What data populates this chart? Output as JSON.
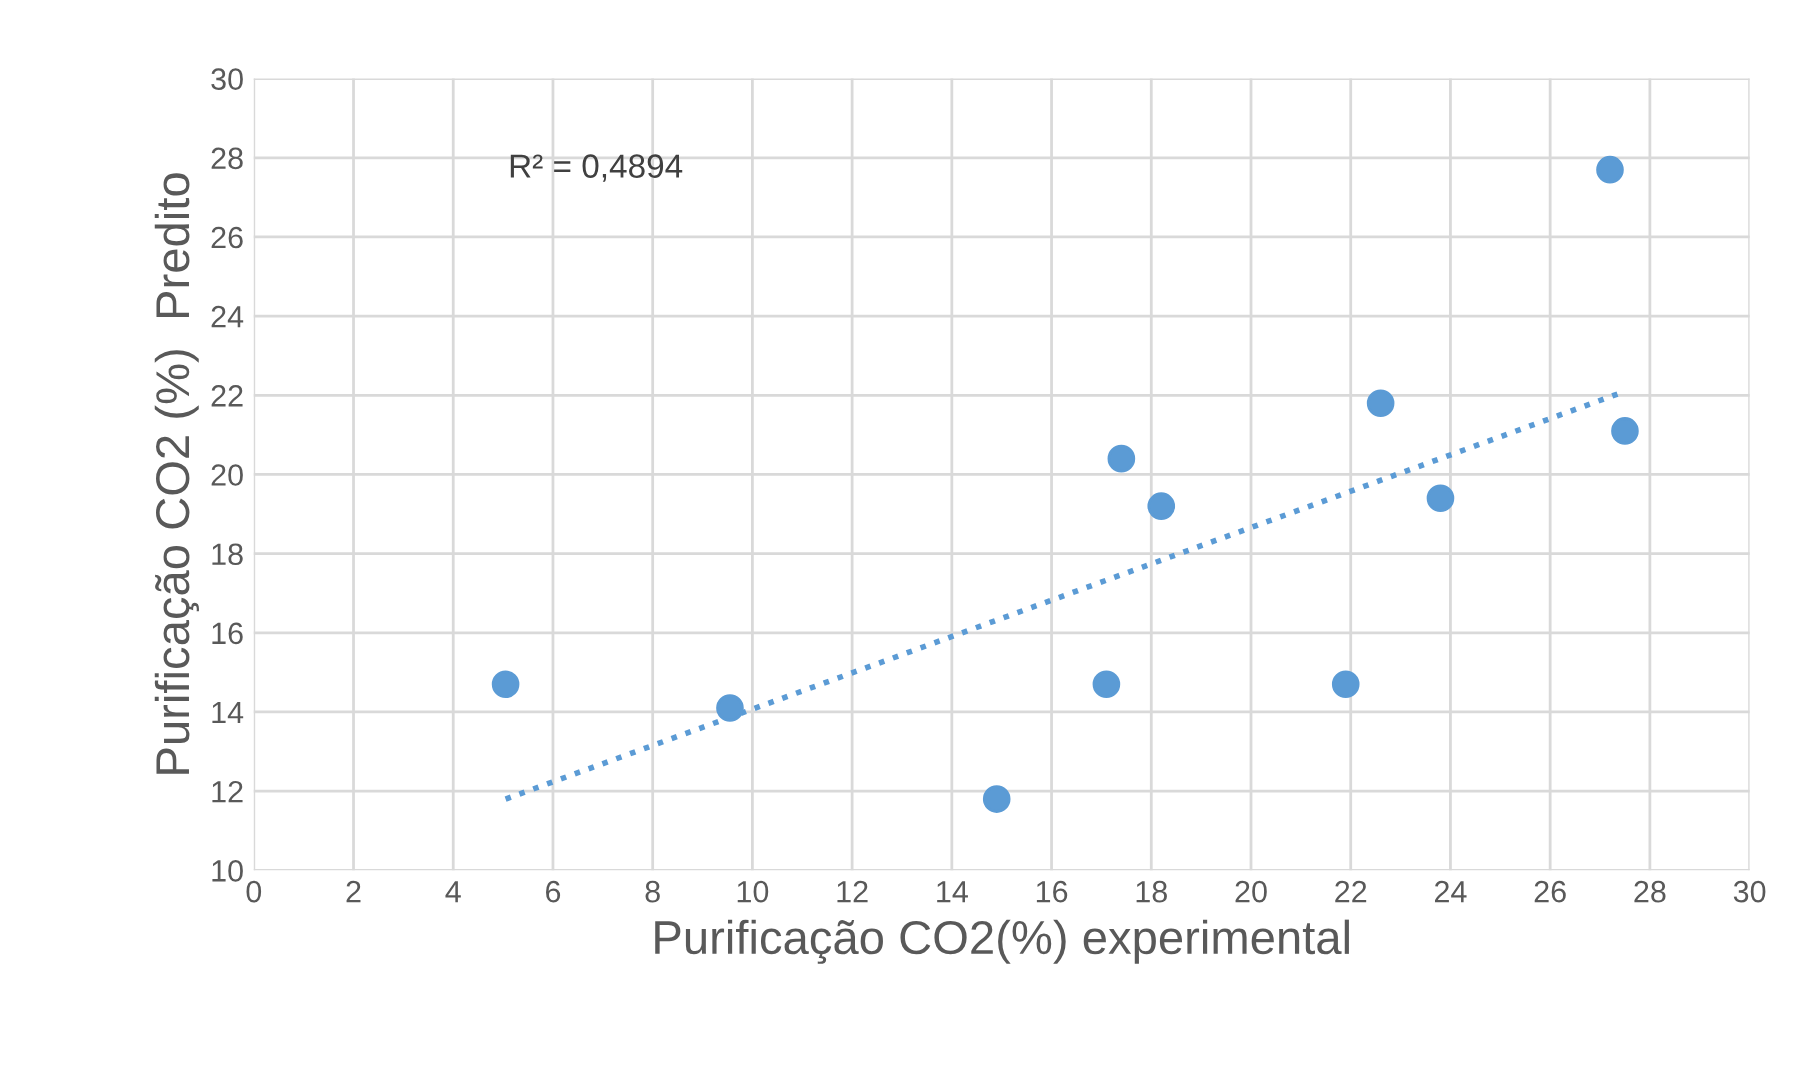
{
  "chart_data": {
    "type": "scatter",
    "xlabel": "Purificação CO2(%) experimental",
    "ylabel": "Purificação CO2 (%)  Predito",
    "xlim": [
      0,
      30
    ],
    "xticks": [
      0,
      2,
      4,
      6,
      8,
      10,
      12,
      14,
      16,
      18,
      20,
      22,
      24,
      26,
      28,
      30
    ],
    "ylim": [
      10,
      30
    ],
    "yticks": [
      10,
      12,
      14,
      16,
      18,
      20,
      22,
      24,
      26,
      28,
      30
    ],
    "grid": true,
    "legend": false,
    "marker": "circle",
    "annotations": [
      "R² = 0,4894"
    ],
    "series": [
      {
        "color": "#5b9bd5",
        "x": [
          5.05,
          9.55,
          14.9,
          17.1,
          17.4,
          18.2,
          21.9,
          22.6,
          23.8,
          27.2,
          27.5
        ],
        "values": [
          14.7,
          14.1,
          11.8,
          14.7,
          20.4,
          19.2,
          14.7,
          21.8,
          19.4,
          27.7,
          21.1
        ]
      },
      {
        "type": "line",
        "color": "#5b9bd5",
        "marker": "none",
        "line_style": "dotted",
        "x": [
          5.05,
          27.5
        ],
        "values": [
          11.8,
          22.1
        ]
      }
    ]
  }
}
